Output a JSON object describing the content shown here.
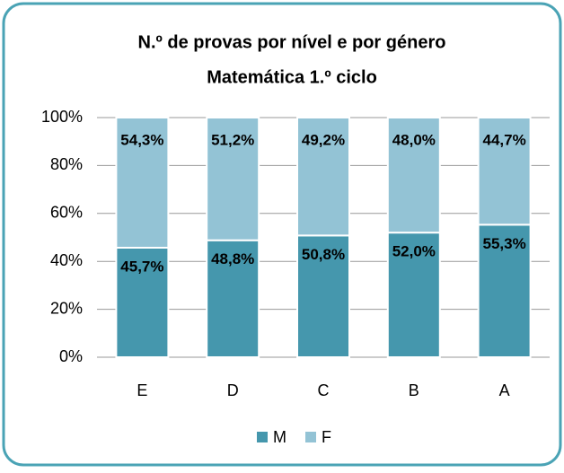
{
  "chart_data": {
    "type": "stacked_bar",
    "title": "N.º de provas por nível e por género",
    "subtitle": "Matemática 1.º ciclo",
    "categories": [
      "E",
      "D",
      "C",
      "B",
      "A"
    ],
    "series": [
      {
        "name": "M",
        "color": "#4597ad",
        "values": [
          45.7,
          48.8,
          50.8,
          52.0,
          55.3
        ],
        "value_labels": [
          "45,7%",
          "48,8%",
          "50,8%",
          "52,0%",
          "55,3%"
        ]
      },
      {
        "name": "F",
        "color": "#93c3d5",
        "values": [
          54.3,
          51.2,
          49.2,
          48.0,
          44.7
        ],
        "value_labels": [
          "54,3%",
          "51,2%",
          "49,2%",
          "48,0%",
          "44,7%"
        ]
      }
    ],
    "ylim": [
      0,
      100
    ],
    "yticks": [
      {
        "value": 0,
        "label": "0%"
      },
      {
        "value": 20,
        "label": "20%"
      },
      {
        "value": 40,
        "label": "40%"
      },
      {
        "value": 60,
        "label": "60%"
      },
      {
        "value": 80,
        "label": "80%"
      },
      {
        "value": 100,
        "label": "100%"
      }
    ],
    "grid": true,
    "legend": "bottom"
  }
}
